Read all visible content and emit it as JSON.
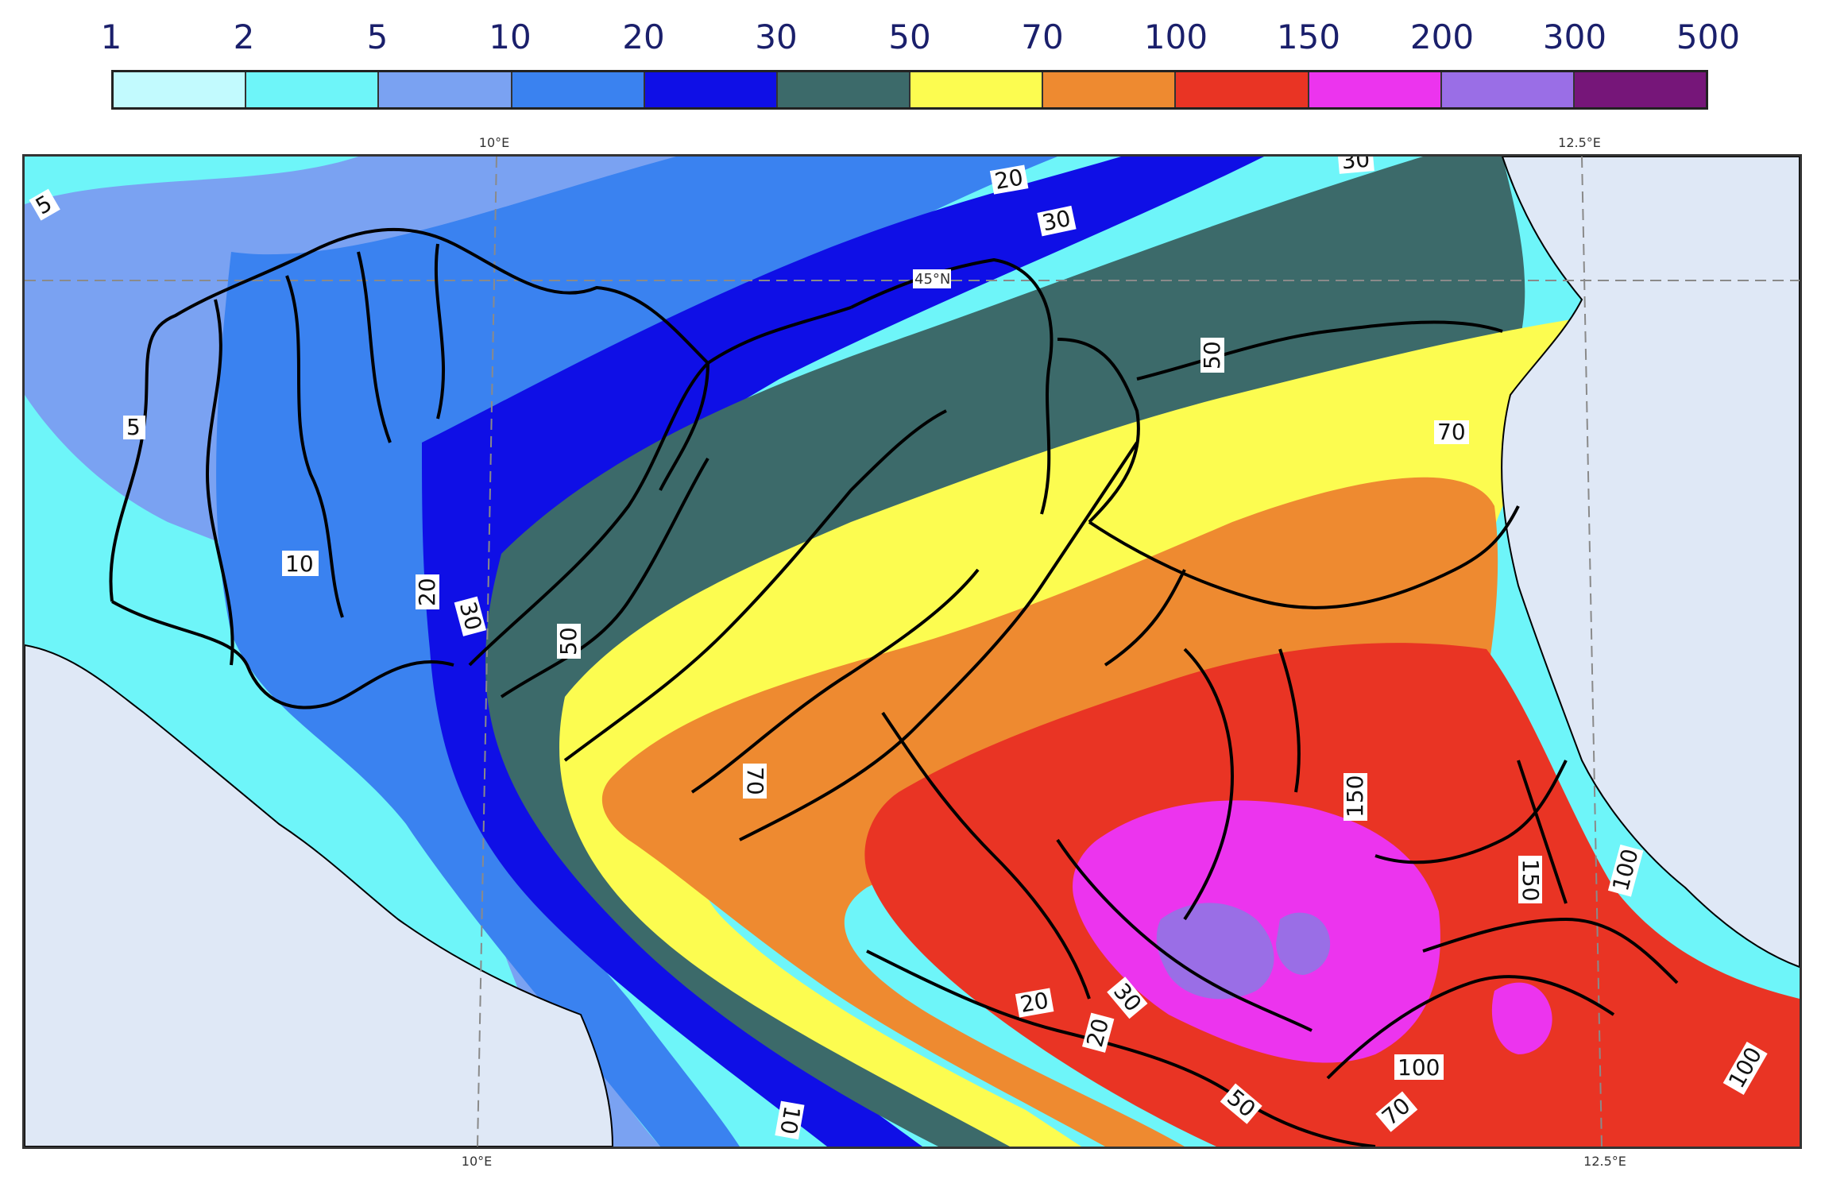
{
  "legend": {
    "labels": [
      "1",
      "2",
      "5",
      "10",
      "20",
      "30",
      "50",
      "70",
      "100",
      "150",
      "200",
      "300",
      "500"
    ],
    "colors": [
      "#c2fafe",
      "#6ef5f9",
      "#7aa2f2",
      "#3a82f0",
      "#0f0fe6",
      "#3c6a6a",
      "#fcfc50",
      "#ee8a30",
      "#e93424",
      "#ec34ee",
      "#9a6ee6",
      "#761679"
    ]
  },
  "axes": {
    "top_ticks": [
      "10°E",
      "12.5°E"
    ],
    "bottom_ticks": [
      "10°E",
      "12.5°E"
    ],
    "lat_label": "45°N"
  },
  "contour_labels": [
    "5",
    "5",
    "10",
    "20",
    "30",
    "50",
    "20",
    "30",
    "30",
    "50",
    "70",
    "70",
    "150",
    "150",
    "20",
    "20",
    "30",
    "50",
    "70",
    "100",
    "100",
    "10",
    "100"
  ],
  "colors": {
    "land_background": "#dfe8f6",
    "boundary": "#000000",
    "grid": "#8a8a8a",
    "sea": "#dfe8f6"
  }
}
